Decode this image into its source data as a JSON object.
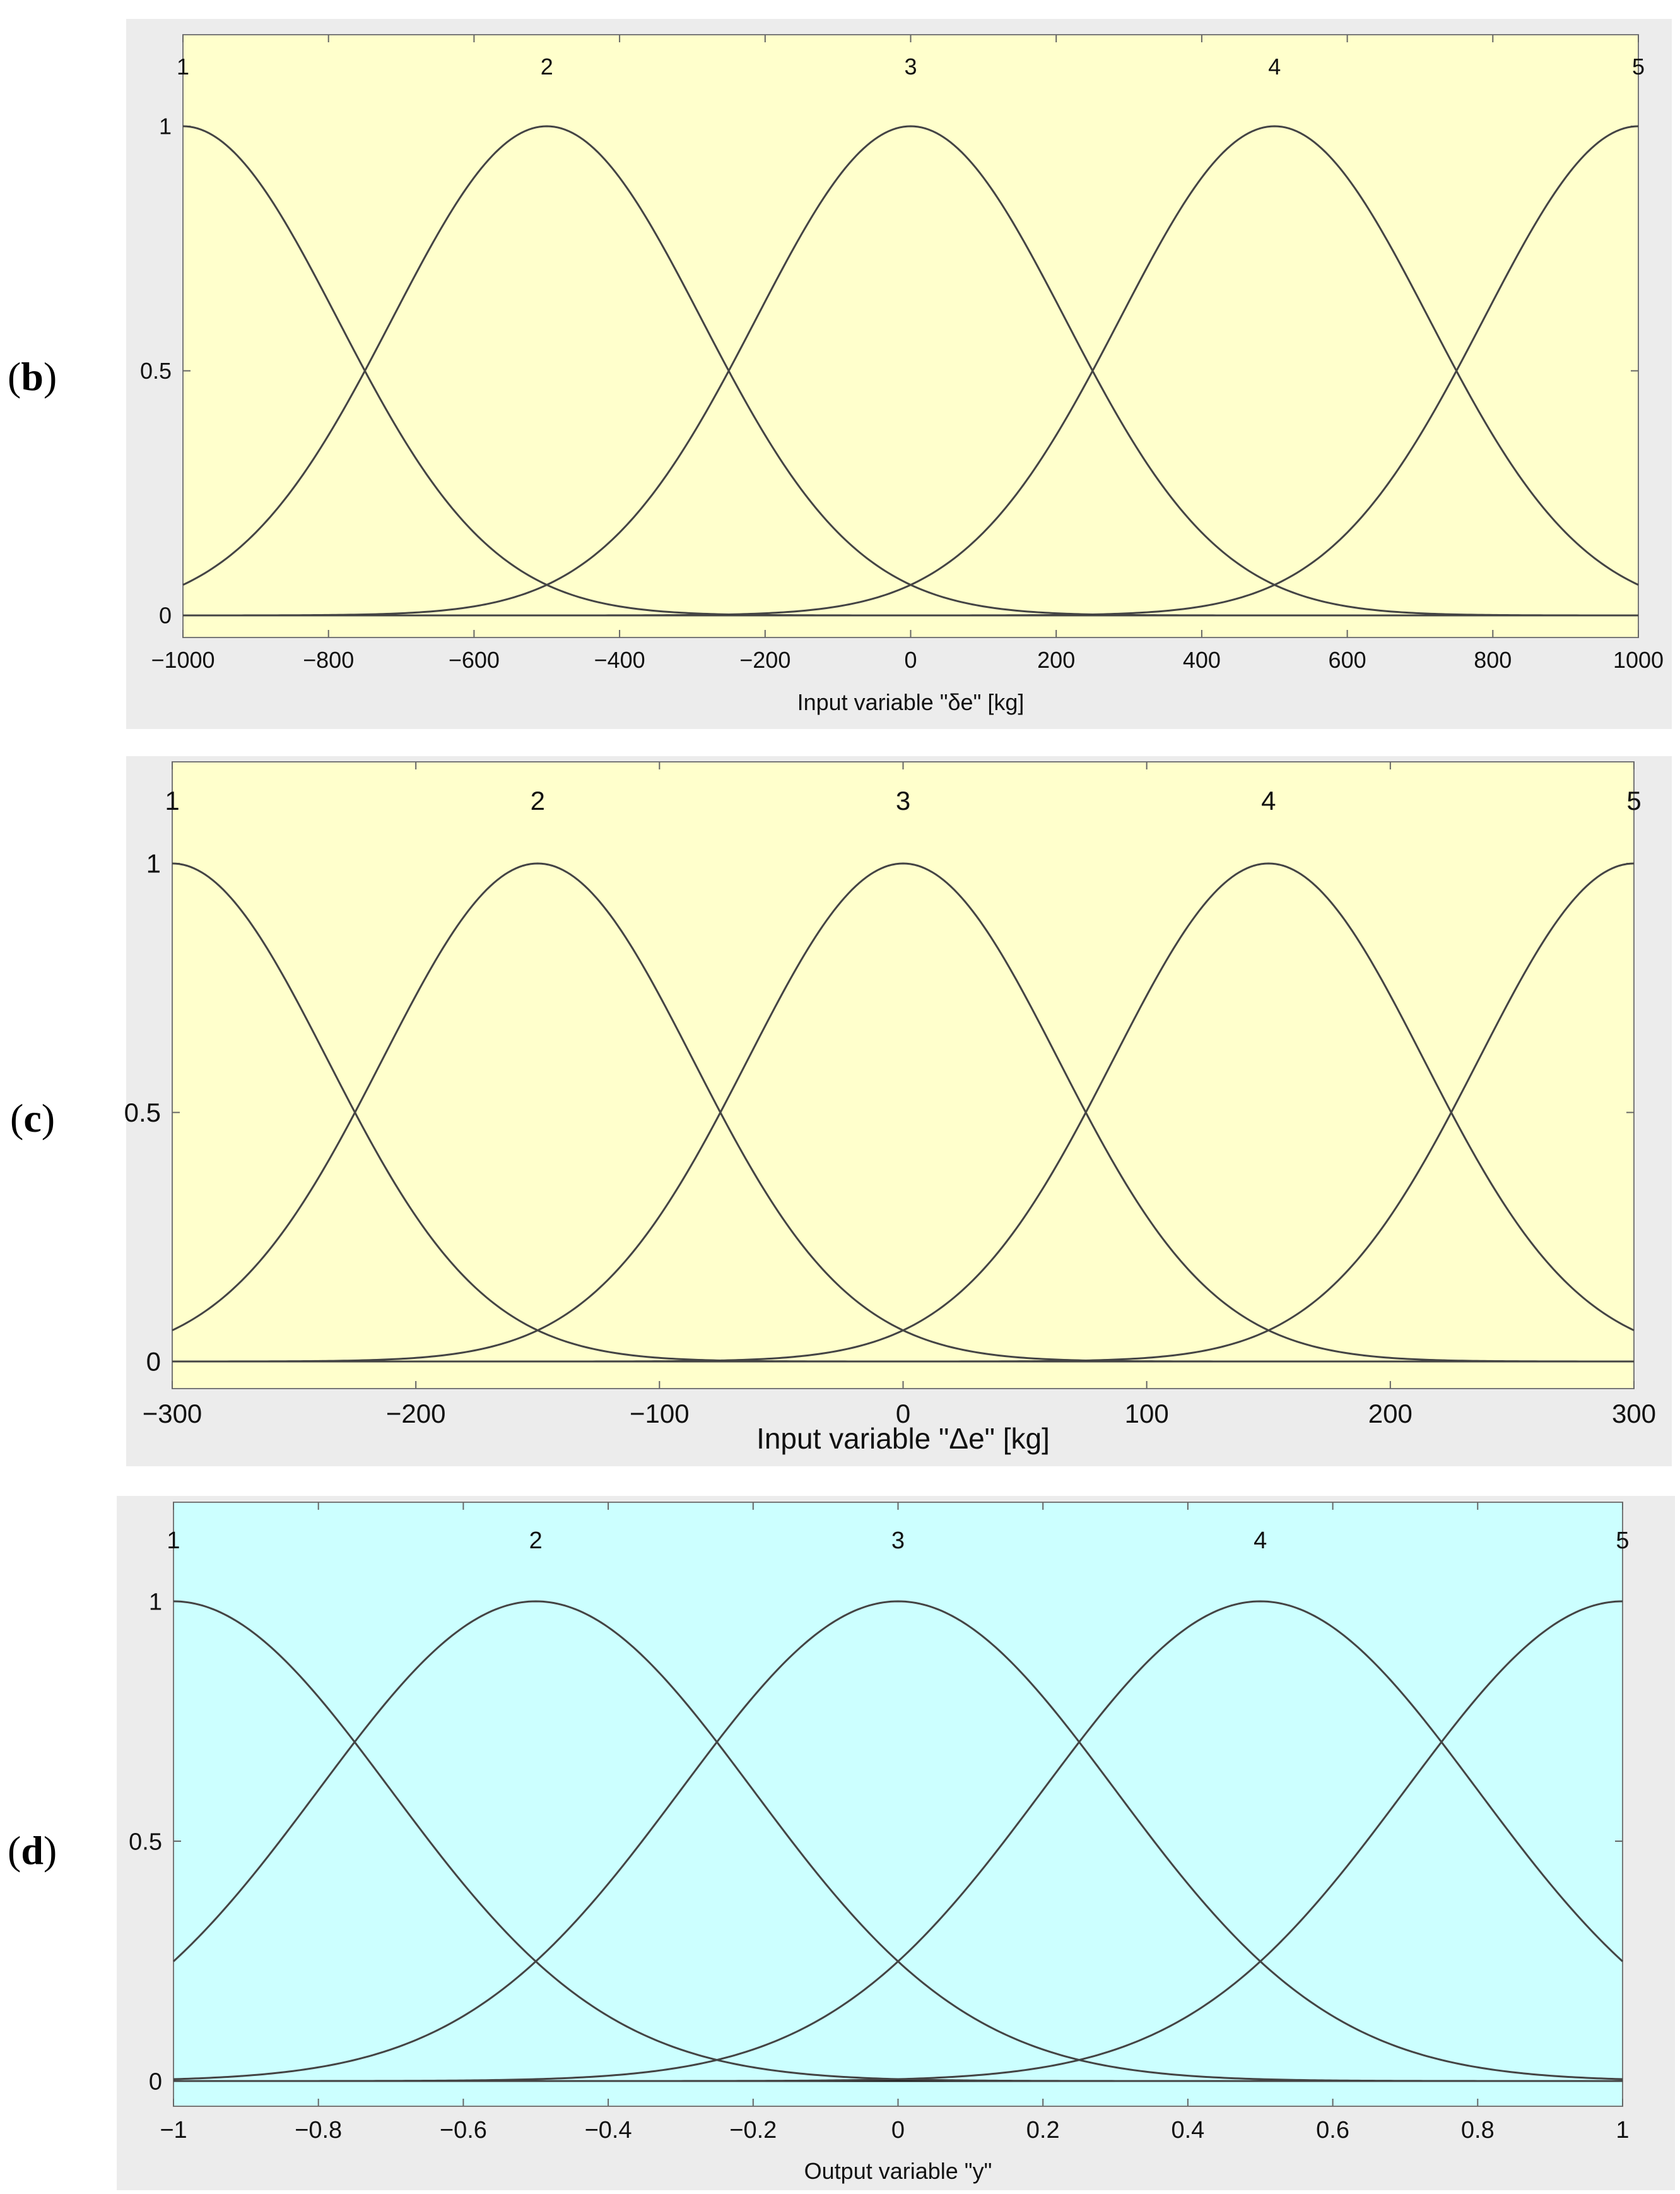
{
  "chart_data": [
    {
      "id": "b",
      "type": "line",
      "panel_label": "b",
      "background": "#ffffcc",
      "xlabel": "Input variable \"δe\"  [kg]",
      "xlim": [
        -1000,
        1000
      ],
      "ylim": [
        0,
        1
      ],
      "xticks": [
        -1000,
        -800,
        -600,
        -400,
        -200,
        0,
        200,
        400,
        600,
        800,
        1000
      ],
      "xtick_labels": [
        "−1000",
        "−800",
        "−600",
        "−400",
        "−200",
        "0",
        "200",
        "400",
        "600",
        "800",
        "1000"
      ],
      "yticks": [
        0,
        0.5,
        1
      ],
      "ytick_labels": [
        "0",
        "0.5",
        "1"
      ],
      "series": [
        {
          "name": "1",
          "shape": "gaussian",
          "center": -1000,
          "sigma": 212.3
        },
        {
          "name": "2",
          "shape": "gaussian",
          "center": -500,
          "sigma": 212.3
        },
        {
          "name": "3",
          "shape": "gaussian",
          "center": 0,
          "sigma": 212.3
        },
        {
          "name": "4",
          "shape": "gaussian",
          "center": 500,
          "sigma": 212.3
        },
        {
          "name": "5",
          "shape": "gaussian",
          "center": 1000,
          "sigma": 212.3
        }
      ]
    },
    {
      "id": "c",
      "type": "line",
      "panel_label": "c",
      "background": "#ffffcc",
      "xlabel": "Input variable \"Δe\"  [kg]",
      "xlim": [
        -300,
        300
      ],
      "ylim": [
        0,
        1
      ],
      "xticks": [
        -300,
        -200,
        -100,
        0,
        100,
        200,
        300
      ],
      "xtick_labels": [
        "−300",
        "−200",
        "−100",
        "0",
        "100",
        "200",
        "300"
      ],
      "yticks": [
        0,
        0.5,
        1
      ],
      "ytick_labels": [
        "0",
        "0.5",
        "1"
      ],
      "series": [
        {
          "name": "1",
          "shape": "gaussian",
          "center": -300,
          "sigma": 63.7
        },
        {
          "name": "2",
          "shape": "gaussian",
          "center": -150,
          "sigma": 63.7
        },
        {
          "name": "3",
          "shape": "gaussian",
          "center": 0,
          "sigma": 63.7
        },
        {
          "name": "4",
          "shape": "gaussian",
          "center": 150,
          "sigma": 63.7
        },
        {
          "name": "5",
          "shape": "gaussian",
          "center": 300,
          "sigma": 63.7
        }
      ]
    },
    {
      "id": "d",
      "type": "line",
      "panel_label": "d",
      "background": "#ccffff",
      "xlabel": "Output variable \"y\"",
      "xlim": [
        -1,
        1
      ],
      "ylim": [
        0,
        1
      ],
      "xticks": [
        -1,
        -0.8,
        -0.6,
        -0.4,
        -0.2,
        0,
        0.2,
        0.4,
        0.6,
        0.8,
        1
      ],
      "xtick_labels": [
        "−1",
        "−0.8",
        "−0.6",
        "−0.4",
        "−0.2",
        "0",
        "0.2",
        "0.4",
        "0.6",
        "0.8",
        "1"
      ],
      "yticks": [
        0,
        0.5,
        1
      ],
      "ytick_labels": [
        "0",
        "0.5",
        "1"
      ],
      "series": [
        {
          "name": "1",
          "shape": "gaussian",
          "center": -1,
          "sigma": 0.3
        },
        {
          "name": "2",
          "shape": "gaussian",
          "center": -0.5,
          "sigma": 0.3
        },
        {
          "name": "3",
          "shape": "gaussian",
          "center": 0,
          "sigma": 0.3
        },
        {
          "name": "4",
          "shape": "gaussian",
          "center": 0.5,
          "sigma": 0.3
        },
        {
          "name": "5",
          "shape": "gaussian",
          "center": 1,
          "sigma": 0.3
        }
      ]
    }
  ]
}
